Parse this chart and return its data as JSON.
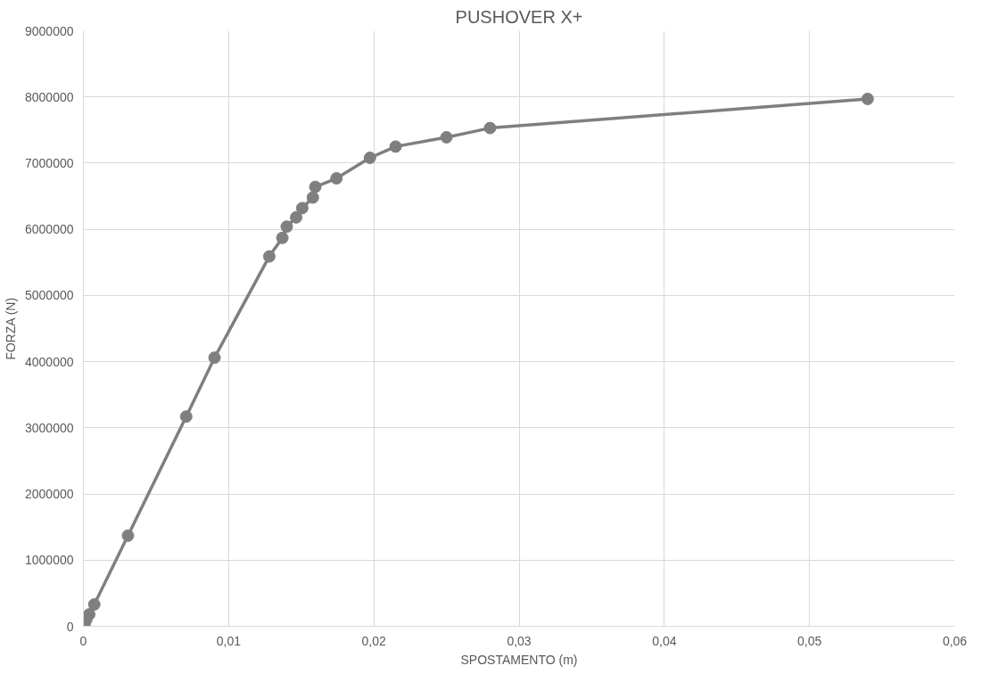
{
  "chart_data": {
    "type": "line",
    "title": "PUSHOVER X+",
    "xlabel": "SPOSTAMENTO (m)",
    "ylabel": "FORZA (N)",
    "x": [
      0,
      0.0001,
      0.0002,
      0.0004,
      0.00075,
      0.00307,
      0.00708,
      0.00903,
      0.0128,
      0.0137,
      0.014,
      0.01465,
      0.01507,
      0.0158,
      0.01597,
      0.01743,
      0.01973,
      0.0215,
      0.025,
      0.028,
      0.054
    ],
    "series": [
      {
        "color": "#7f7f7f",
        "values": [
          0,
          50000,
          100000,
          180000,
          330000,
          1370000,
          3170000,
          4060000,
          5590000,
          5870000,
          6040000,
          6180000,
          6320000,
          6480000,
          6640000,
          6770000,
          7080000,
          7250000,
          7390000,
          7530000,
          7970000
        ]
      }
    ],
    "xlim": [
      0,
      0.06
    ],
    "xticks": [
      {
        "value": 0,
        "label": "0"
      },
      {
        "value": 0.01,
        "label": "0,01"
      },
      {
        "value": 0.02,
        "label": "0,02"
      },
      {
        "value": 0.03,
        "label": "0,03"
      },
      {
        "value": 0.04,
        "label": "0,04"
      },
      {
        "value": 0.05,
        "label": "0,05"
      },
      {
        "value": 0.06,
        "label": "0,06"
      }
    ],
    "ylim": [
      0,
      9000000
    ],
    "yticks": [
      0,
      1000000,
      2000000,
      3000000,
      4000000,
      5000000,
      6000000,
      7000000,
      8000000,
      9000000
    ],
    "grid": true,
    "marker": "circle",
    "line_style": "solid"
  }
}
